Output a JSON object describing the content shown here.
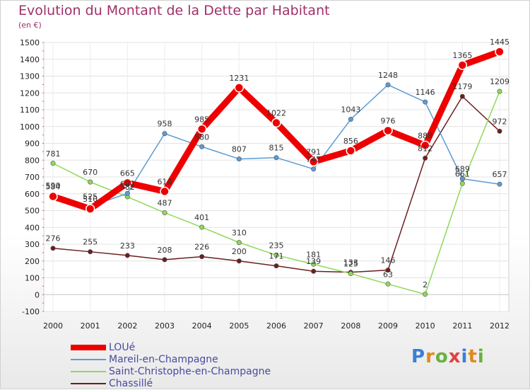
{
  "chart_data": {
    "type": "line",
    "title": "Evolution du Montant de la Dette par Habitant",
    "subtitle": "(en €)",
    "ylim": [
      -100,
      1500
    ],
    "y_ticks": [
      -100,
      0,
      100,
      200,
      300,
      400,
      500,
      600,
      700,
      800,
      900,
      1000,
      1100,
      1200,
      1300,
      1400,
      1500
    ],
    "x": [
      "2000",
      "2001",
      "2002",
      "2003",
      "2004",
      "2005",
      "2006",
      "2007",
      "2008",
      "2009",
      "2010",
      "2011",
      "2012"
    ],
    "grid": true,
    "legend_position": "bottom-left",
    "series": [
      {
        "name": "LOUé",
        "color": "#ee0000",
        "values": [
          584,
          510,
          665,
          614,
          985,
          1231,
          1022,
          791,
          856,
          976,
          888,
          1365,
          1445
        ]
      },
      {
        "name": "Mareil-en-Champagne",
        "color": "#5b9bd5",
        "values": [
          590,
          525,
          602,
          958,
          880,
          807,
          815,
          747,
          1043,
          1248,
          1146,
          689,
          657
        ]
      },
      {
        "name": "Saint-Christophe-en-Champagne",
        "color": "#8fd85a",
        "values": [
          781,
          670,
          582,
          487,
          401,
          310,
          235,
          181,
          125,
          63,
          2,
          661,
          1209
        ]
      },
      {
        "name": "Chassillé",
        "color": "#6b1e1e",
        "values": [
          276,
          255,
          233,
          208,
          226,
          200,
          171,
          139,
          133,
          146,
          812,
          1179,
          972
        ]
      }
    ]
  },
  "logo": {
    "letters": [
      "P",
      "r",
      "o",
      "x",
      "i",
      "t",
      "i"
    ],
    "colors": [
      "#3a7fd5",
      "#e08a1a",
      "#6ab040",
      "#e04040",
      "#3a7fd5",
      "#e08a1a",
      "#6ab040"
    ]
  }
}
